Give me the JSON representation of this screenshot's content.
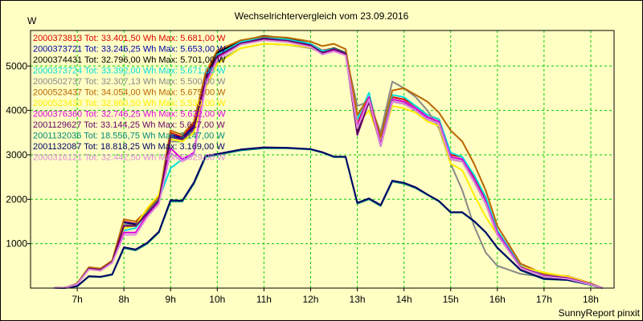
{
  "footer": "SunnyReport pinxit",
  "chart_data": {
    "type": "line",
    "title": "Wechselrichtervergleich vom 23.09.2016",
    "ylabel": "W",
    "xlabel": "",
    "x_range_hours": [
      6.0,
      18.5
    ],
    "ylim": [
      0,
      5800
    ],
    "x_ticks": [
      {
        "value": 7,
        "label": "7h"
      },
      {
        "value": 8,
        "label": "8h"
      },
      {
        "value": 9,
        "label": "9h"
      },
      {
        "value": 10,
        "label": "10h"
      },
      {
        "value": 11,
        "label": "11h"
      },
      {
        "value": 12,
        "label": "12h"
      },
      {
        "value": 13,
        "label": "13h"
      },
      {
        "value": 14,
        "label": "14h"
      },
      {
        "value": 15,
        "label": "15h"
      },
      {
        "value": 16,
        "label": "16h"
      },
      {
        "value": 17,
        "label": "17h"
      },
      {
        "value": 18,
        "label": "18h"
      }
    ],
    "y_ticks": [
      {
        "value": 1000,
        "label": "1000"
      },
      {
        "value": 2000,
        "label": "2000"
      },
      {
        "value": 3000,
        "label": "3000"
      },
      {
        "value": 4000,
        "label": "4000"
      },
      {
        "value": 5000,
        "label": "5000"
      }
    ],
    "grid": true,
    "legend_position": "top-left",
    "series": [
      {
        "name": "2000373813 Tot: 33.401,50 Wh Max: 5.681,00 W",
        "color": "#dd0000",
        "x": [
          6.5,
          6.75,
          7,
          7.25,
          7.5,
          7.75,
          8,
          8.25,
          8.5,
          8.75,
          9,
          9.25,
          9.5,
          9.75,
          10,
          10.5,
          11,
          11.5,
          12,
          12.25,
          12.5,
          12.75,
          13,
          13.25,
          13.5,
          13.75,
          14,
          14.25,
          14.5,
          14.75,
          15,
          15.25,
          15.5,
          15.75,
          16,
          16.5,
          17,
          17.5,
          18,
          18.25
        ],
        "y": [
          0,
          10,
          100,
          450,
          420,
          600,
          1500,
          1450,
          1700,
          2000,
          3500,
          3400,
          3700,
          4800,
          5300,
          5550,
          5650,
          5600,
          5500,
          5350,
          5400,
          5300,
          3700,
          4300,
          3300,
          4300,
          4250,
          4100,
          3900,
          3800,
          3000,
          2950,
          2500,
          2000,
          1300,
          500,
          300,
          250,
          100,
          0
        ]
      },
      {
        "name": "2000373721 Tot: 33.246,25 Wh Max: 5.653,00 W",
        "color": "#0000aa",
        "x": [
          6.5,
          6.75,
          7,
          7.25,
          7.5,
          7.75,
          8,
          8.25,
          8.5,
          8.75,
          9,
          9.25,
          9.5,
          9.75,
          10,
          10.5,
          11,
          11.5,
          12,
          12.25,
          12.5,
          12.75,
          13,
          13.25,
          13.5,
          13.75,
          14,
          14.25,
          14.5,
          14.75,
          15,
          15.25,
          15.5,
          15.75,
          16,
          16.5,
          17,
          17.5,
          18,
          18.25
        ],
        "y": [
          0,
          10,
          100,
          440,
          410,
          590,
          1480,
          1440,
          1690,
          1990,
          3450,
          3380,
          3650,
          4750,
          5250,
          5520,
          5620,
          5570,
          5470,
          5300,
          5380,
          5280,
          3650,
          4250,
          3250,
          4250,
          4200,
          4050,
          3850,
          3750,
          2950,
          2900,
          2450,
          1950,
          1250,
          480,
          280,
          230,
          90,
          0
        ]
      },
      {
        "name": "2000374431 Tot: 32.796,00 Wh Max: 5.701,00 W",
        "color": "#000000",
        "x": [
          6.5,
          6.75,
          7,
          7.25,
          7.5,
          7.75,
          8,
          8.25,
          8.5,
          8.75,
          9,
          9.25,
          9.5,
          9.75,
          10,
          10.5,
          11,
          11.5,
          12,
          12.25,
          12.5,
          12.75,
          13,
          13.25,
          13.5,
          13.75,
          14,
          14.25,
          14.5,
          14.75,
          15,
          15.25,
          15.5,
          15.75,
          16,
          16.5,
          17,
          17.5,
          18,
          18.25
        ],
        "y": [
          0,
          10,
          90,
          430,
          400,
          580,
          1450,
          1420,
          1650,
          1950,
          3400,
          3350,
          3600,
          4700,
          5300,
          5560,
          5680,
          5620,
          5500,
          5320,
          5400,
          5300,
          3500,
          4200,
          3200,
          4200,
          4150,
          4000,
          3800,
          3700,
          2900,
          2850,
          2400,
          1900,
          1200,
          460,
          270,
          220,
          80,
          0
        ]
      },
      {
        "name": "2000373724 Tot: 33.392,00 Wh Max: 5.671,00 W",
        "color": "#00dddd",
        "x": [
          6.5,
          6.75,
          7,
          7.25,
          7.5,
          7.75,
          8,
          8.25,
          8.5,
          8.75,
          9,
          9.25,
          9.5,
          9.75,
          10,
          10.5,
          11,
          11.5,
          12,
          12.25,
          12.5,
          12.75,
          13,
          13.25,
          13.5,
          13.75,
          14,
          14.25,
          14.5,
          14.75,
          15,
          15.25,
          15.5,
          15.75,
          16,
          16.5,
          17,
          17.5,
          18,
          18.25
        ],
        "y": [
          0,
          10,
          100,
          450,
          420,
          600,
          1300,
          1350,
          1700,
          2000,
          2700,
          2900,
          3000,
          4600,
          5250,
          5540,
          5660,
          5600,
          5500,
          5340,
          5390,
          5290,
          3800,
          4400,
          3300,
          4350,
          4300,
          4100,
          3900,
          3800,
          3050,
          2950,
          2550,
          2050,
          1300,
          500,
          300,
          250,
          100,
          0
        ]
      },
      {
        "name": "2000502737 Tot: 32.307,13 Wh Max: 5.500,00 W",
        "color": "#888888",
        "x": [
          6.5,
          6.75,
          7,
          7.25,
          7.5,
          7.75,
          8,
          8.25,
          8.5,
          8.75,
          9,
          9.25,
          9.5,
          9.75,
          10,
          10.5,
          11,
          11.5,
          12,
          12.25,
          12.5,
          12.75,
          13,
          13.25,
          13.5,
          13.75,
          14,
          14.25,
          14.5,
          14.75,
          15,
          15.25,
          15.5,
          15.75,
          16,
          16.5,
          17,
          17.5,
          18,
          18.25
        ],
        "y": [
          0,
          10,
          100,
          430,
          400,
          580,
          1450,
          1400,
          1650,
          1950,
          3300,
          3300,
          3550,
          4650,
          5100,
          5400,
          5500,
          5480,
          5400,
          5300,
          5380,
          5280,
          4100,
          4200,
          3500,
          4650,
          4500,
          4300,
          4000,
          3600,
          2800,
          2200,
          1400,
          800,
          500,
          320,
          250,
          200,
          80,
          0
        ]
      },
      {
        "name": "2000523437 Tot: 34.054,00 Wh Max: 5.675,00 W",
        "color": "#bb6600",
        "x": [
          6.5,
          6.75,
          7,
          7.25,
          7.5,
          7.75,
          8,
          8.25,
          8.5,
          8.75,
          9,
          9.25,
          9.5,
          9.75,
          10,
          10.5,
          11,
          11.5,
          12,
          12.25,
          12.5,
          12.75,
          13,
          13.25,
          13.5,
          13.75,
          14,
          14.25,
          14.5,
          14.75,
          15,
          15.25,
          15.5,
          15.75,
          16,
          16.5,
          17,
          17.5,
          18,
          18.25
        ],
        "y": [
          0,
          10,
          110,
          470,
          440,
          620,
          1550,
          1500,
          1750,
          2050,
          3550,
          3450,
          3750,
          4850,
          5350,
          5580,
          5670,
          5640,
          5550,
          5450,
          5500,
          5380,
          3900,
          4300,
          3400,
          4450,
          4500,
          4350,
          4200,
          3950,
          3550,
          3300,
          2800,
          2200,
          1400,
          550,
          320,
          270,
          110,
          0
        ]
      },
      {
        "name": "2000523433 Tot: 32.960,50 Wh Max: 5.530,00 W",
        "color": "#ffee00",
        "x": [
          6.5,
          6.75,
          7,
          7.25,
          7.5,
          7.75,
          8,
          8.25,
          8.5,
          8.75,
          9,
          9.25,
          9.5,
          9.75,
          10,
          10.5,
          11,
          11.5,
          12,
          12.25,
          12.5,
          12.75,
          13,
          13.25,
          13.5,
          13.75,
          14,
          14.25,
          14.5,
          14.75,
          15,
          15.25,
          15.5,
          15.75,
          16,
          16.5,
          17,
          17.5,
          18,
          18.25
        ],
        "y": [
          0,
          10,
          100,
          440,
          410,
          590,
          1350,
          1400,
          1800,
          2100,
          3350,
          3300,
          3500,
          4500,
          5050,
          5400,
          5500,
          5480,
          5420,
          5300,
          5350,
          5250,
          3700,
          4000,
          3300,
          4100,
          4050,
          3950,
          3750,
          3650,
          2800,
          2650,
          2100,
          1600,
          1200,
          480,
          350,
          260,
          100,
          0
        ]
      },
      {
        "name": "2000376360 Tot: 32.746,25 Wh Max: 5.632,00 W",
        "color": "#dd00dd",
        "x": [
          6.5,
          6.75,
          7,
          7.25,
          7.5,
          7.75,
          8,
          8.25,
          8.5,
          8.75,
          9,
          9.25,
          9.5,
          9.75,
          10,
          10.5,
          11,
          11.5,
          12,
          12.25,
          12.5,
          12.75,
          13,
          13.25,
          13.5,
          13.75,
          14,
          14.25,
          14.5,
          14.75,
          15,
          15.25,
          15.5,
          15.75,
          16,
          16.5,
          17,
          17.5,
          18,
          18.25
        ],
        "y": [
          0,
          10,
          90,
          430,
          400,
          580,
          1250,
          1250,
          1650,
          1950,
          3150,
          2900,
          3050,
          4650,
          5200,
          5500,
          5600,
          5560,
          5450,
          5280,
          5350,
          5260,
          3650,
          4300,
          3250,
          4250,
          4200,
          4050,
          3850,
          3750,
          2950,
          2900,
          2450,
          1950,
          1250,
          470,
          280,
          230,
          90,
          0
        ]
      },
      {
        "name": "2001129627 Tot: 33.144,25 Wh Max: 5.617,00 W",
        "color": "#660066",
        "x": [
          6.5,
          6.75,
          7,
          7.25,
          7.5,
          7.75,
          8,
          8.25,
          8.5,
          8.75,
          9,
          9.25,
          9.5,
          9.75,
          10,
          10.5,
          11,
          11.5,
          12,
          12.25,
          12.5,
          12.75,
          13,
          13.25,
          13.5,
          13.75,
          14,
          14.25,
          14.5,
          14.75,
          15,
          15.25,
          15.5,
          15.75,
          16,
          16.5,
          17,
          17.5,
          18,
          18.25
        ],
        "y": [
          0,
          10,
          95,
          440,
          410,
          590,
          1400,
          1400,
          1680,
          1980,
          3400,
          3350,
          3600,
          4700,
          5220,
          5510,
          5610,
          5570,
          5470,
          5300,
          5380,
          5280,
          3450,
          4200,
          3200,
          4200,
          4150,
          4000,
          3800,
          3700,
          2900,
          2850,
          2400,
          1900,
          1200,
          460,
          270,
          220,
          85,
          0
        ]
      },
      {
        "name": "2001132036 Tot: 18.556,75 Wh Max: 3.147,00 W",
        "color": "#008877",
        "x": [
          6.5,
          6.75,
          7,
          7.25,
          7.5,
          7.75,
          8,
          8.25,
          8.5,
          8.75,
          9,
          9.25,
          9.5,
          9.75,
          10,
          10.5,
          11,
          11.5,
          12,
          12.25,
          12.5,
          12.75,
          13,
          13.25,
          13.5,
          13.75,
          14,
          14.25,
          14.5,
          14.75,
          15,
          15.25,
          15.5,
          15.75,
          16,
          16.5,
          17,
          17.5,
          18,
          18.25
        ],
        "y": [
          0,
          5,
          40,
          260,
          250,
          300,
          900,
          850,
          1000,
          1250,
          1950,
          1950,
          2350,
          2950,
          3000,
          3100,
          3150,
          3150,
          3120,
          3050,
          2950,
          2950,
          1900,
          2000,
          1850,
          2400,
          2350,
          2250,
          2100,
          1950,
          1700,
          1700,
          1500,
          1250,
          900,
          400,
          200,
          180,
          70,
          0
        ]
      },
      {
        "name": "2001132087 Tot: 18.818,25 Wh Max: 3.169,00 W",
        "color": "#000066",
        "x": [
          6.5,
          6.75,
          7,
          7.25,
          7.5,
          7.75,
          8,
          8.25,
          8.5,
          8.75,
          9,
          9.25,
          9.5,
          9.75,
          10,
          10.5,
          11,
          11.5,
          12,
          12.25,
          12.5,
          12.75,
          13,
          13.25,
          13.5,
          13.75,
          14,
          14.25,
          14.5,
          14.75,
          15,
          15.25,
          15.5,
          15.75,
          16,
          16.5,
          17,
          17.5,
          18,
          18.25
        ],
        "y": [
          0,
          5,
          45,
          270,
          255,
          310,
          920,
          870,
          1020,
          1270,
          1980,
          1970,
          2380,
          2980,
          3020,
          3120,
          3169,
          3160,
          3130,
          3060,
          2960,
          2960,
          1920,
          2020,
          1870,
          2420,
          2370,
          2270,
          2110,
          1960,
          1710,
          1710,
          1510,
          1260,
          910,
          410,
          210,
          185,
          75,
          0
        ]
      },
      {
        "name": "2000316121 Tot: 32.442,50 Wh Max: 5.629,00 W",
        "color": "#dd88dd",
        "x": [
          6.5,
          6.75,
          7,
          7.25,
          7.5,
          7.75,
          8,
          8.25,
          8.5,
          8.75,
          9,
          9.25,
          9.5,
          9.75,
          10,
          10.5,
          11,
          11.5,
          12,
          12.25,
          12.5,
          12.75,
          13,
          13.25,
          13.5,
          13.75,
          14,
          14.25,
          14.5,
          14.75,
          15,
          15.25,
          15.5,
          15.75,
          16,
          16.5,
          17,
          17.5,
          18,
          18.25
        ],
        "y": [
          0,
          10,
          90,
          420,
          390,
          570,
          1200,
          1200,
          1600,
          1900,
          3050,
          2850,
          3000,
          4550,
          5150,
          5480,
          5580,
          5540,
          5430,
          5260,
          5330,
          5240,
          3600,
          4250,
          3200,
          4200,
          4150,
          4000,
          3800,
          3700,
          2900,
          2850,
          2400,
          1900,
          1200,
          450,
          260,
          210,
          80,
          0
        ]
      }
    ]
  }
}
